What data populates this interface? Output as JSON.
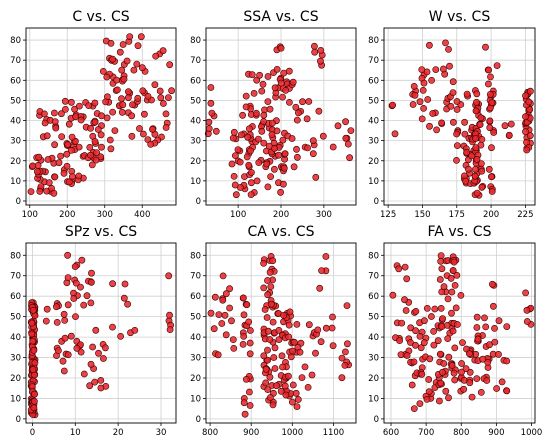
{
  "colors": {
    "marker_fill": "#e8282e",
    "marker_edge": "#3a0000",
    "grid": "#d0d0d0"
  },
  "chart_data": [
    {
      "type": "scatter",
      "title": "C vs. CS",
      "xlim": [
        90,
        490
      ],
      "ylim": [
        -2,
        86
      ],
      "xticks": [
        100,
        200,
        300,
        400
      ],
      "yticks": [
        0,
        10,
        20,
        30,
        40,
        50,
        60,
        70,
        80
      ],
      "grid": true,
      "clusters": [
        {
          "x": [
            100,
            170
          ],
          "y": [
            2,
            22
          ],
          "n": 26
        },
        {
          "x": [
            120,
            200
          ],
          "y": [
            12,
            45
          ],
          "n": 22
        },
        {
          "x": [
            180,
            280
          ],
          "y": [
            5,
            30
          ],
          "n": 28
        },
        {
          "x": [
            190,
            280
          ],
          "y": [
            28,
            52
          ],
          "n": 22
        },
        {
          "x": [
            260,
            340
          ],
          "y": [
            20,
            45
          ],
          "n": 18
        },
        {
          "x": [
            290,
            370
          ],
          "y": [
            40,
            65
          ],
          "n": 22
        },
        {
          "x": [
            300,
            420
          ],
          "y": [
            60,
            82
          ],
          "n": 20
        },
        {
          "x": [
            350,
            480
          ],
          "y": [
            28,
            55
          ],
          "n": 24
        },
        {
          "x": [
            400,
            480
          ],
          "y": [
            50,
            75
          ],
          "n": 14
        }
      ]
    },
    {
      "type": "scatter",
      "title": "SSA vs. CS",
      "xlim": [
        25,
        375
      ],
      "ylim": [
        -2,
        86
      ],
      "xticks": [
        100,
        200,
        300
      ],
      "yticks": [
        0,
        10,
        20,
        30,
        40,
        50,
        60,
        70,
        80
      ],
      "grid": true,
      "clusters": [
        {
          "x": [
            30,
            50
          ],
          "y": [
            32,
            58
          ],
          "n": 8
        },
        {
          "x": [
            85,
            140
          ],
          "y": [
            3,
            40
          ],
          "n": 30
        },
        {
          "x": [
            110,
            200
          ],
          "y": [
            20,
            65
          ],
          "n": 45
        },
        {
          "x": [
            140,
            210
          ],
          "y": [
            3,
            35
          ],
          "n": 35
        },
        {
          "x": [
            180,
            230
          ],
          "y": [
            30,
            80
          ],
          "n": 20
        },
        {
          "x": [
            230,
            300
          ],
          "y": [
            10,
            50
          ],
          "n": 18
        },
        {
          "x": [
            260,
            300
          ],
          "y": [
            65,
            82
          ],
          "n": 6
        },
        {
          "x": [
            320,
            365
          ],
          "y": [
            20,
            40
          ],
          "n": 8
        }
      ]
    },
    {
      "type": "scatter",
      "title": "W vs. CS",
      "xlim": [
        122,
        232
      ],
      "ylim": [
        -2,
        86
      ],
      "xticks": [
        125,
        150,
        175,
        200,
        225
      ],
      "yticks": [
        0,
        10,
        20,
        30,
        40,
        50,
        60,
        70,
        80
      ],
      "grid": true,
      "clusters": [
        {
          "x": [
            127,
            130
          ],
          "y": [
            28,
            55
          ],
          "n": 3
        },
        {
          "x": [
            140,
            170
          ],
          "y": [
            35,
            82
          ],
          "n": 32
        },
        {
          "x": [
            170,
            190
          ],
          "y": [
            20,
            60
          ],
          "n": 25
        },
        {
          "x": [
            180,
            190
          ],
          "y": [
            8,
            35
          ],
          "n": 30
        },
        {
          "x": [
            188,
            194
          ],
          "y": [
            2,
            50
          ],
          "n": 40
        },
        {
          "x": [
            198,
            202
          ],
          "y": [
            3,
            55
          ],
          "n": 22
        },
        {
          "x": [
            195,
            205
          ],
          "y": [
            55,
            78
          ],
          "n": 6
        },
        {
          "x": [
            210,
            215
          ],
          "y": [
            30,
            40
          ],
          "n": 4
        },
        {
          "x": [
            225,
            229
          ],
          "y": [
            25,
            57
          ],
          "n": 30
        }
      ]
    },
    {
      "type": "scatter",
      "title": "SPz vs. CS",
      "xlim": [
        -1.5,
        33.5
      ],
      "ylim": [
        -2,
        86
      ],
      "xticks": [
        0,
        10,
        20,
        30
      ],
      "yticks": [
        0,
        10,
        20,
        30,
        40,
        50,
        60,
        70,
        80
      ],
      "grid": true,
      "clusters": [
        {
          "x": [
            -0.3,
            0.6
          ],
          "y": [
            2,
            57
          ],
          "n": 110
        },
        {
          "x": [
            3,
            8
          ],
          "y": [
            15,
            58
          ],
          "n": 16
        },
        {
          "x": [
            8,
            14
          ],
          "y": [
            30,
            80
          ],
          "n": 28
        },
        {
          "x": [
            12,
            18
          ],
          "y": [
            15,
            45
          ],
          "n": 14
        },
        {
          "x": [
            18,
            24
          ],
          "y": [
            28,
            82
          ],
          "n": 8
        },
        {
          "x": [
            31,
            33
          ],
          "y": [
            40,
            70
          ],
          "n": 5
        }
      ]
    },
    {
      "type": "scatter",
      "title": "CA vs. CS",
      "xlim": [
        790,
        1155
      ],
      "ylim": [
        -2,
        86
      ],
      "xticks": [
        800,
        900,
        1000,
        1100
      ],
      "yticks": [
        0,
        10,
        20,
        30,
        40,
        50,
        60,
        70,
        80
      ],
      "grid": true,
      "clusters": [
        {
          "x": [
            800,
            860
          ],
          "y": [
            30,
            70
          ],
          "n": 18
        },
        {
          "x": [
            880,
            900
          ],
          "y": [
            2,
            60
          ],
          "n": 22
        },
        {
          "x": [
            930,
            960
          ],
          "y": [
            5,
            80
          ],
          "n": 55
        },
        {
          "x": [
            960,
            1000
          ],
          "y": [
            10,
            55
          ],
          "n": 40
        },
        {
          "x": [
            1000,
            1060
          ],
          "y": [
            5,
            50
          ],
          "n": 22
        },
        {
          "x": [
            1060,
            1100
          ],
          "y": [
            30,
            80
          ],
          "n": 10
        },
        {
          "x": [
            1120,
            1140
          ],
          "y": [
            20,
            60
          ],
          "n": 8
        }
      ]
    },
    {
      "type": "scatter",
      "title": "FA vs. CS",
      "xlim": [
        580,
        1010
      ],
      "ylim": [
        -2,
        86
      ],
      "xticks": [
        600,
        700,
        800,
        900,
        1000
      ],
      "yticks": [
        0,
        10,
        20,
        30,
        40,
        50,
        60,
        70,
        80
      ],
      "grid": true,
      "clusters": [
        {
          "x": [
            595,
            660
          ],
          "y": [
            25,
            75
          ],
          "n": 22
        },
        {
          "x": [
            660,
            740
          ],
          "y": [
            5,
            55
          ],
          "n": 45
        },
        {
          "x": [
            740,
            800
          ],
          "y": [
            10,
            80
          ],
          "n": 45
        },
        {
          "x": [
            770,
            790
          ],
          "y": [
            20,
            82
          ],
          "n": 14
        },
        {
          "x": [
            800,
            880
          ],
          "y": [
            10,
            50
          ],
          "n": 40
        },
        {
          "x": [
            880,
            940
          ],
          "y": [
            10,
            70
          ],
          "n": 16
        },
        {
          "x": [
            980,
            1000
          ],
          "y": [
            45,
            62
          ],
          "n": 6
        }
      ]
    }
  ]
}
